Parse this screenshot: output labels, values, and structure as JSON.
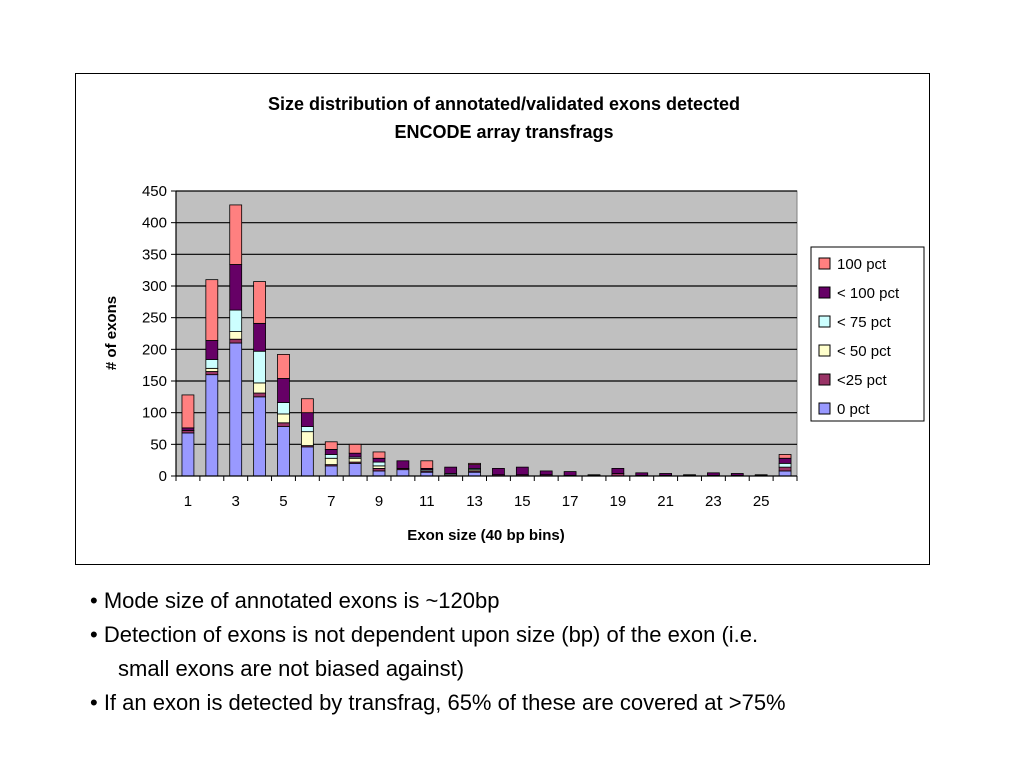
{
  "chart_data": {
    "type": "bar",
    "stacked": true,
    "title": [
      "Size distribution of annotated/validated exons detected",
      "ENCODE array transfrags"
    ],
    "xlabel": "Exon size (40 bp bins)",
    "ylabel": "# of exons",
    "ylim": [
      0,
      450
    ],
    "yticks": [
      "0",
      "50",
      "100",
      "150",
      "200",
      "250",
      "300",
      "350",
      "400",
      "450"
    ],
    "categories": [
      1,
      2,
      3,
      4,
      5,
      6,
      7,
      8,
      9,
      10,
      11,
      12,
      13,
      14,
      15,
      16,
      17,
      18,
      19,
      20,
      21,
      22,
      23,
      24,
      25,
      26
    ],
    "xtick_labels": [
      "1",
      "3",
      "5",
      "7",
      "9",
      "11",
      "13",
      "15",
      "17",
      "19",
      "21",
      "23",
      "25"
    ],
    "grid": true,
    "legend_position": "right",
    "series": [
      {
        "name": "0 pct",
        "color": "#9999ff",
        "values": [
          68,
          160,
          210,
          125,
          78,
          46,
          16,
          20,
          8,
          10,
          6,
          0,
          6,
          0,
          0,
          0,
          0,
          0,
          0,
          0,
          0,
          0,
          0,
          0,
          0,
          8
        ]
      },
      {
        "name": "<25 pct",
        "color": "#993366",
        "values": [
          4,
          5,
          6,
          6,
          6,
          2,
          2,
          2,
          4,
          2,
          2,
          2,
          2,
          2,
          2,
          2,
          1,
          1,
          4,
          1,
          1,
          1,
          1,
          1,
          1,
          6
        ]
      },
      {
        "name": "< 50 pct",
        "color": "#ffffcc",
        "values": [
          0,
          5,
          12,
          16,
          14,
          22,
          10,
          6,
          4,
          0,
          0,
          0,
          2,
          0,
          0,
          0,
          0,
          0,
          0,
          0,
          0,
          0,
          0,
          0,
          0,
          0
        ]
      },
      {
        "name": "< 75 pct",
        "color": "#ccffff",
        "values": [
          0,
          14,
          34,
          50,
          18,
          8,
          6,
          2,
          6,
          0,
          2,
          2,
          2,
          0,
          0,
          0,
          0,
          0,
          0,
          0,
          0,
          0,
          0,
          0,
          0,
          6
        ]
      },
      {
        "name": "< 100 pct",
        "color": "#660066",
        "values": [
          4,
          30,
          72,
          44,
          38,
          22,
          8,
          6,
          6,
          12,
          2,
          10,
          6,
          10,
          12,
          6,
          6,
          1,
          8,
          4,
          3,
          1,
          4,
          3,
          1,
          8
        ]
      },
      {
        "name": "100 pct",
        "color": "#ff8080",
        "values": [
          52,
          96,
          94,
          66,
          38,
          22,
          12,
          14,
          10,
          0,
          12,
          0,
          2,
          0,
          0,
          0,
          0,
          0,
          0,
          0,
          0,
          0,
          0,
          0,
          0,
          6
        ]
      }
    ],
    "legend_order": [
      "100 pct",
      "< 100 pct",
      "< 75 pct",
      "< 50 pct",
      "<25 pct",
      "0 pct"
    ],
    "plot_bg_color": "#c0c0c0"
  },
  "notes": [
    "• Mode size of annotated exons is ~120bp",
    "• Detection of exons is not dependent upon size (bp) of the exon (i.e.",
    "small exons are not biased against)",
    "• If an exon is detected by transfrag, 65% of these are covered at >75%"
  ]
}
